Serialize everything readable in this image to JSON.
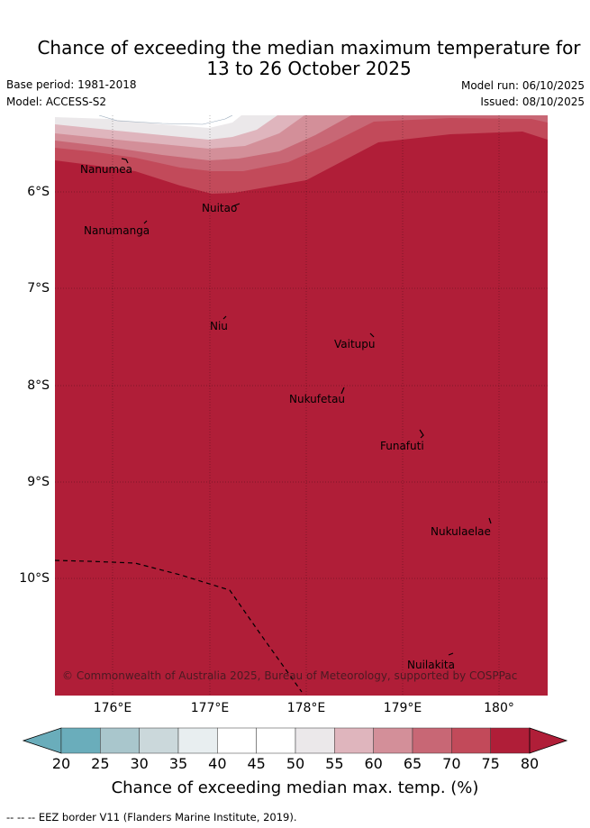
{
  "title": {
    "line1": "Chance of exceeding the median maximum temperature for",
    "line2": "13 to 26 October 2025"
  },
  "meta": {
    "base_period": "Base period: 1981-2018",
    "model": "Model: ACCESS-S2",
    "model_run": "Model run: 06/10/2025",
    "issued": "Issued: 08/10/2025"
  },
  "map": {
    "latitude_labels": [
      "6°S",
      "7°S",
      "8°S",
      "9°S",
      "10°S"
    ],
    "longitude_labels": [
      "176°E",
      "177°E",
      "178°E",
      "179°E",
      "180°"
    ],
    "places": [
      "Nanumea",
      "Nuitao",
      "Nanumanga",
      "Niu",
      "Vaitupu",
      "Nukufetau",
      "Funafuti",
      "Nukulaelae",
      "Nuilakita"
    ],
    "copyright": "© Commonwealth of Australia 2025, Bureau of Meteorology, supported by COSPPac"
  },
  "colorbar": {
    "ticks": [
      "20",
      "25",
      "30",
      "35",
      "40",
      "45",
      "50",
      "55",
      "60",
      "65",
      "70",
      "75",
      "80"
    ],
    "colors": [
      "#6aadbb",
      "#8ab7c3",
      "#a9c6cc",
      "#cbd8db",
      "#e8eef0",
      "#ffffff",
      "#ffffff",
      "#ebe8ea",
      "#dfb5bd",
      "#d38f99",
      "#c86775",
      "#c24a5a",
      "#b01e38"
    ],
    "title": "Chance of exceeding median max. temp. (%)"
  },
  "legend": {
    "eez": "-- -- -- EEZ border V11 (Flanders Marine Institute, 2019)."
  }
}
